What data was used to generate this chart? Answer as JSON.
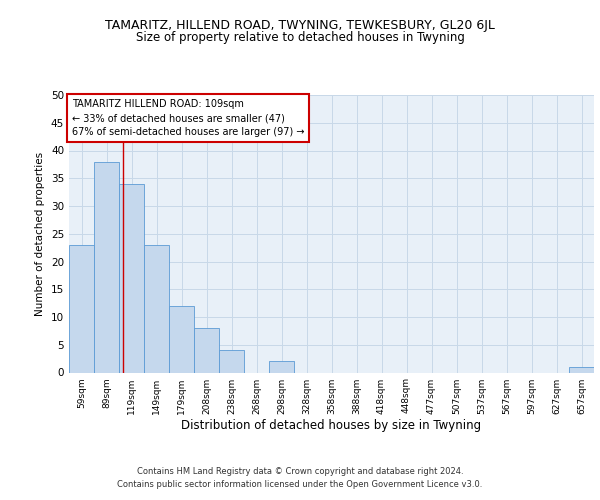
{
  "title": "TAMARITZ, HILLEND ROAD, TWYNING, TEWKESBURY, GL20 6JL",
  "subtitle": "Size of property relative to detached houses in Twyning",
  "xlabel": "Distribution of detached houses by size in Twyning",
  "ylabel": "Number of detached properties",
  "categories": [
    "59sqm",
    "89sqm",
    "119sqm",
    "149sqm",
    "179sqm",
    "208sqm",
    "238sqm",
    "268sqm",
    "298sqm",
    "328sqm",
    "358sqm",
    "388sqm",
    "418sqm",
    "448sqm",
    "477sqm",
    "507sqm",
    "537sqm",
    "567sqm",
    "597sqm",
    "627sqm",
    "657sqm"
  ],
  "values": [
    23,
    38,
    34,
    23,
    12,
    8,
    4,
    0,
    2,
    0,
    0,
    0,
    0,
    0,
    0,
    0,
    0,
    0,
    0,
    0,
    1
  ],
  "bar_color": "#c5d8ed",
  "bar_edge_color": "#5b9bd5",
  "grid_color": "#c8d8e8",
  "property_line_x": 1.67,
  "annotation_text": "TAMARITZ HILLEND ROAD: 109sqm\n← 33% of detached houses are smaller (47)\n67% of semi-detached houses are larger (97) →",
  "annotation_box_color": "#ffffff",
  "annotation_box_edge": "#cc0000",
  "vline_color": "#cc0000",
  "footer1": "Contains HM Land Registry data © Crown copyright and database right 2024.",
  "footer2": "Contains public sector information licensed under the Open Government Licence v3.0.",
  "ylim": [
    0,
    50
  ],
  "yticks": [
    0,
    5,
    10,
    15,
    20,
    25,
    30,
    35,
    40,
    45,
    50
  ],
  "background_color": "#e8f0f8",
  "fig_background": "#ffffff"
}
